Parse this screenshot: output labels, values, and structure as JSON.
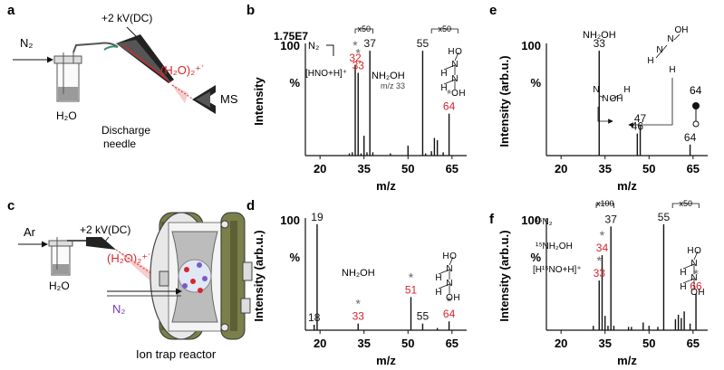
{
  "panels": {
    "a": {
      "letter": "a",
      "gas": "N₂",
      "voltage": "+2 kV(DC)",
      "ion": "(H₂O)₂⁺˙",
      "water": "H₂O",
      "needle_line1": "Discharge",
      "needle_line2": "needle",
      "detector": "MS"
    },
    "c": {
      "letter": "c",
      "gas": "Ar",
      "voltage": "+2 kV(DC)",
      "ion": "(H₂O)₂⁺˙",
      "water": "H₂O",
      "reagent": "N₂",
      "reactor": "Ion trap reactor"
    }
  },
  "chart_data": [
    {
      "panel": "b",
      "type": "bar",
      "ylabel": "Intensity",
      "xlabel": "m/z",
      "yaxis_top": "100",
      "yaxis_unit": "%",
      "scale_label": "1.75E7",
      "xlim": [
        15,
        70
      ],
      "ylim": [
        0,
        100
      ],
      "xticks": [
        20,
        35,
        50,
        65
      ],
      "x": [
        30,
        31,
        32,
        33,
        34,
        35,
        36,
        37,
        38,
        44,
        50,
        55,
        56,
        58,
        59,
        60,
        62,
        64
      ],
      "y": [
        2,
        3,
        82,
        75,
        2,
        18,
        3,
        95,
        3,
        2,
        9,
        95,
        2,
        4,
        16,
        14,
        3,
        38
      ],
      "peak_labels": [
        {
          "mz": 32,
          "text": "32",
          "star": true,
          "color": "#d6262a"
        },
        {
          "mz": 33,
          "text": "33",
          "star": true,
          "color": "#d6262a"
        },
        {
          "mz": 37,
          "text": "37",
          "star": false,
          "color": "#111111"
        },
        {
          "mz": 55,
          "text": "55",
          "star": false,
          "color": "#111111"
        },
        {
          "mz": 64,
          "text": "64",
          "star": true,
          "color": "#d6262a"
        }
      ],
      "zoom_labels": [
        "x50",
        "x50"
      ],
      "annotations": [
        "N₂",
        "[HNO+H]⁺",
        "NH₂OH",
        "m/z 33"
      ],
      "molecule_atoms": [
        "H",
        "O",
        "N",
        "N",
        "H",
        "H",
        "O",
        "H"
      ]
    },
    {
      "panel": "d",
      "type": "bar",
      "ylabel": "Intensity (arb.u.)",
      "xlabel": "m/z",
      "yaxis_top": "100",
      "yaxis_unit": "%",
      "xlim": [
        15,
        70
      ],
      "ylim": [
        0,
        100
      ],
      "xticks": [
        20,
        35,
        50,
        65
      ],
      "x": [
        18,
        19,
        33,
        51,
        55,
        60,
        64
      ],
      "y": [
        5,
        96,
        6,
        30,
        6,
        2,
        8
      ],
      "peak_labels": [
        {
          "mz": 18,
          "text": "18",
          "star": false,
          "color": "#111111"
        },
        {
          "mz": 19,
          "text": "19",
          "star": false,
          "color": "#111111"
        },
        {
          "mz": 33,
          "text": "33",
          "star": true,
          "color": "#d6262a"
        },
        {
          "mz": 51,
          "text": "51",
          "star": true,
          "color": "#d6262a"
        },
        {
          "mz": 55,
          "text": "55",
          "star": false,
          "color": "#111111"
        },
        {
          "mz": 64,
          "text": "64",
          "star": true,
          "color": "#d6262a"
        }
      ],
      "annotations": [
        "NH₂OH"
      ],
      "molecule_atoms": [
        "H",
        "O",
        "N",
        "N",
        "H",
        "H",
        "O",
        "H"
      ]
    },
    {
      "panel": "e",
      "type": "bar",
      "ylabel": "Intensity (arb.u.)",
      "xlabel": "m/z",
      "yaxis_top": "100",
      "yaxis_unit": "%",
      "xlim": [
        15,
        70
      ],
      "ylim": [
        0,
        100
      ],
      "xticks": [
        20,
        35,
        50,
        65
      ],
      "x": [
        33,
        46,
        47,
        64
      ],
      "y": [
        95,
        20,
        27,
        10
      ],
      "peak_labels": [
        {
          "mz": 33,
          "text": "33",
          "star": false,
          "color": "#111111"
        },
        {
          "mz": 46,
          "text": "46",
          "star": false,
          "color": "#111111"
        },
        {
          "mz": 47,
          "text": "47",
          "star": false,
          "color": "#111111"
        },
        {
          "mz": 64,
          "text": "64",
          "star": false,
          "color": "#111111"
        }
      ],
      "annotations": [
        "NH₂OH",
        "64"
      ],
      "molecule_atoms": [
        "H",
        "N",
        "N",
        "OH",
        "H",
        "N",
        "N",
        "OH",
        "H"
      ]
    },
    {
      "panel": "f",
      "type": "bar",
      "ylabel": "Intensity (arb.u.)",
      "xlabel": "m/z",
      "yaxis_top": "100",
      "yaxis_unit": "%",
      "xlim": [
        15,
        70
      ],
      "ylim": [
        0,
        100
      ],
      "xticks": [
        20,
        35,
        50,
        65
      ],
      "x": [
        31,
        33,
        34,
        35,
        36,
        37,
        38,
        43,
        44,
        48,
        50,
        53,
        55,
        59,
        60,
        61,
        62,
        64,
        66
      ],
      "y": [
        4,
        45,
        68,
        13,
        4,
        94,
        4,
        3,
        3,
        7,
        4,
        3,
        96,
        10,
        14,
        11,
        17,
        6,
        33
      ],
      "peak_labels": [
        {
          "mz": 33,
          "text": "33",
          "star": true,
          "color": "#d6262a"
        },
        {
          "mz": 34,
          "text": "34",
          "star": true,
          "color": "#d6262a"
        },
        {
          "mz": 37,
          "text": "37",
          "star": false,
          "color": "#111111"
        },
        {
          "mz": 55,
          "text": "55",
          "star": false,
          "color": "#111111"
        },
        {
          "mz": 66,
          "text": "66",
          "star": true,
          "color": "#d6262a"
        }
      ],
      "zoom_labels": [
        "x100",
        "x50"
      ],
      "annotations": [
        "¹⁵N₂",
        "¹⁵NH₂OH",
        "[H¹⁵NO+H]⁺"
      ],
      "molecule_atoms": [
        "H",
        "O",
        "N",
        "N",
        "H",
        "H",
        "O",
        "H"
      ]
    }
  ]
}
